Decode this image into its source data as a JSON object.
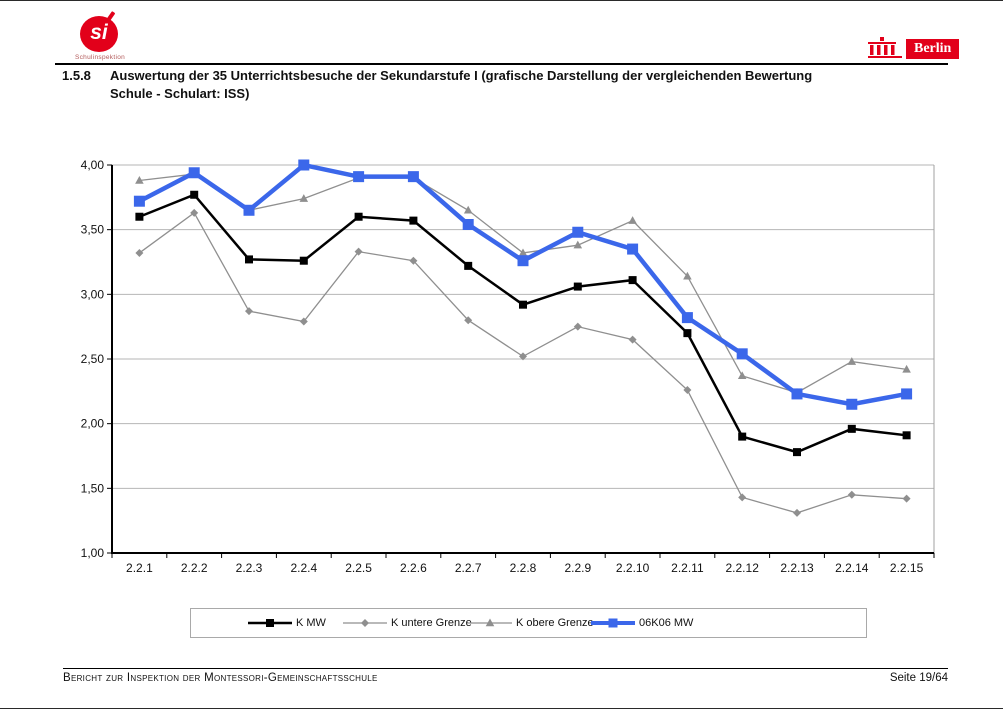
{
  "header": {
    "logo_initials": "si",
    "logo_caption": "Schulinspektion",
    "berlin_label": "Berlin"
  },
  "title": {
    "number": "1.5.8",
    "line1": "Auswertung der 35 Unterrichtsbesuche der Sekundarstufe I (grafische Darstellung der vergleichenden Bewertung",
    "line2": "Schule - Schulart: ISS)"
  },
  "colors": {
    "accent_blue": "#3B67EA",
    "series_gray": "#8f8f8f",
    "series_black": "#000000",
    "brand_red": "#e2001a",
    "gridline": "#b6b6b6"
  },
  "chart_data": {
    "type": "line",
    "categories": [
      "2.2.1",
      "2.2.2",
      "2.2.3",
      "2.2.4",
      "2.2.5",
      "2.2.6",
      "2.2.7",
      "2.2.8",
      "2.2.9",
      "2.2.10",
      "2.2.11",
      "2.2.12",
      "2.2.13",
      "2.2.14",
      "2.2.15"
    ],
    "series": [
      {
        "name": "K MW",
        "color": "#000000",
        "marker": "square",
        "marker_size": 8,
        "line_width": 2.5,
        "values": [
          3.6,
          3.77,
          3.27,
          3.26,
          3.6,
          3.57,
          3.22,
          2.92,
          3.06,
          3.11,
          2.7,
          1.9,
          1.78,
          1.96,
          1.91
        ]
      },
      {
        "name": "K untere Grenze",
        "color": "#8f8f8f",
        "marker": "diamond",
        "marker_size": 8,
        "line_width": 1.3,
        "values": [
          3.32,
          3.63,
          2.87,
          2.79,
          3.33,
          3.26,
          2.8,
          2.52,
          2.75,
          2.65,
          2.26,
          1.43,
          1.31,
          1.45,
          1.42
        ]
      },
      {
        "name": "K obere Grenze",
        "color": "#8f8f8f",
        "marker": "triangle",
        "marker_size": 9,
        "line_width": 1.3,
        "values": [
          3.88,
          3.93,
          3.65,
          3.74,
          3.9,
          3.9,
          3.65,
          3.32,
          3.38,
          3.57,
          3.14,
          2.37,
          2.24,
          2.48,
          2.42
        ]
      },
      {
        "name": "06K06 MW",
        "color": "#3B67EA",
        "marker": "square",
        "marker_size": 11,
        "line_width": 4.5,
        "values": [
          3.72,
          3.94,
          3.65,
          4.0,
          3.91,
          3.91,
          3.54,
          3.26,
          3.48,
          3.35,
          2.82,
          2.54,
          2.23,
          2.15,
          2.23
        ]
      }
    ],
    "title": "",
    "xlabel": "",
    "ylabel": "",
    "ylim": [
      1.0,
      4.0
    ],
    "ytick_step": 0.5,
    "ytick_labels": [
      "4,00",
      "3,50",
      "3,00",
      "2,50",
      "2,00",
      "1,50",
      "1,00"
    ],
    "grid": true,
    "legend_position": "bottom",
    "draw_order": [
      1,
      2,
      0,
      3
    ]
  },
  "footer": {
    "left": "Bericht zur Inspektion der Montessori-Gemeinschaftsschule",
    "right": "Seite 19/64"
  }
}
